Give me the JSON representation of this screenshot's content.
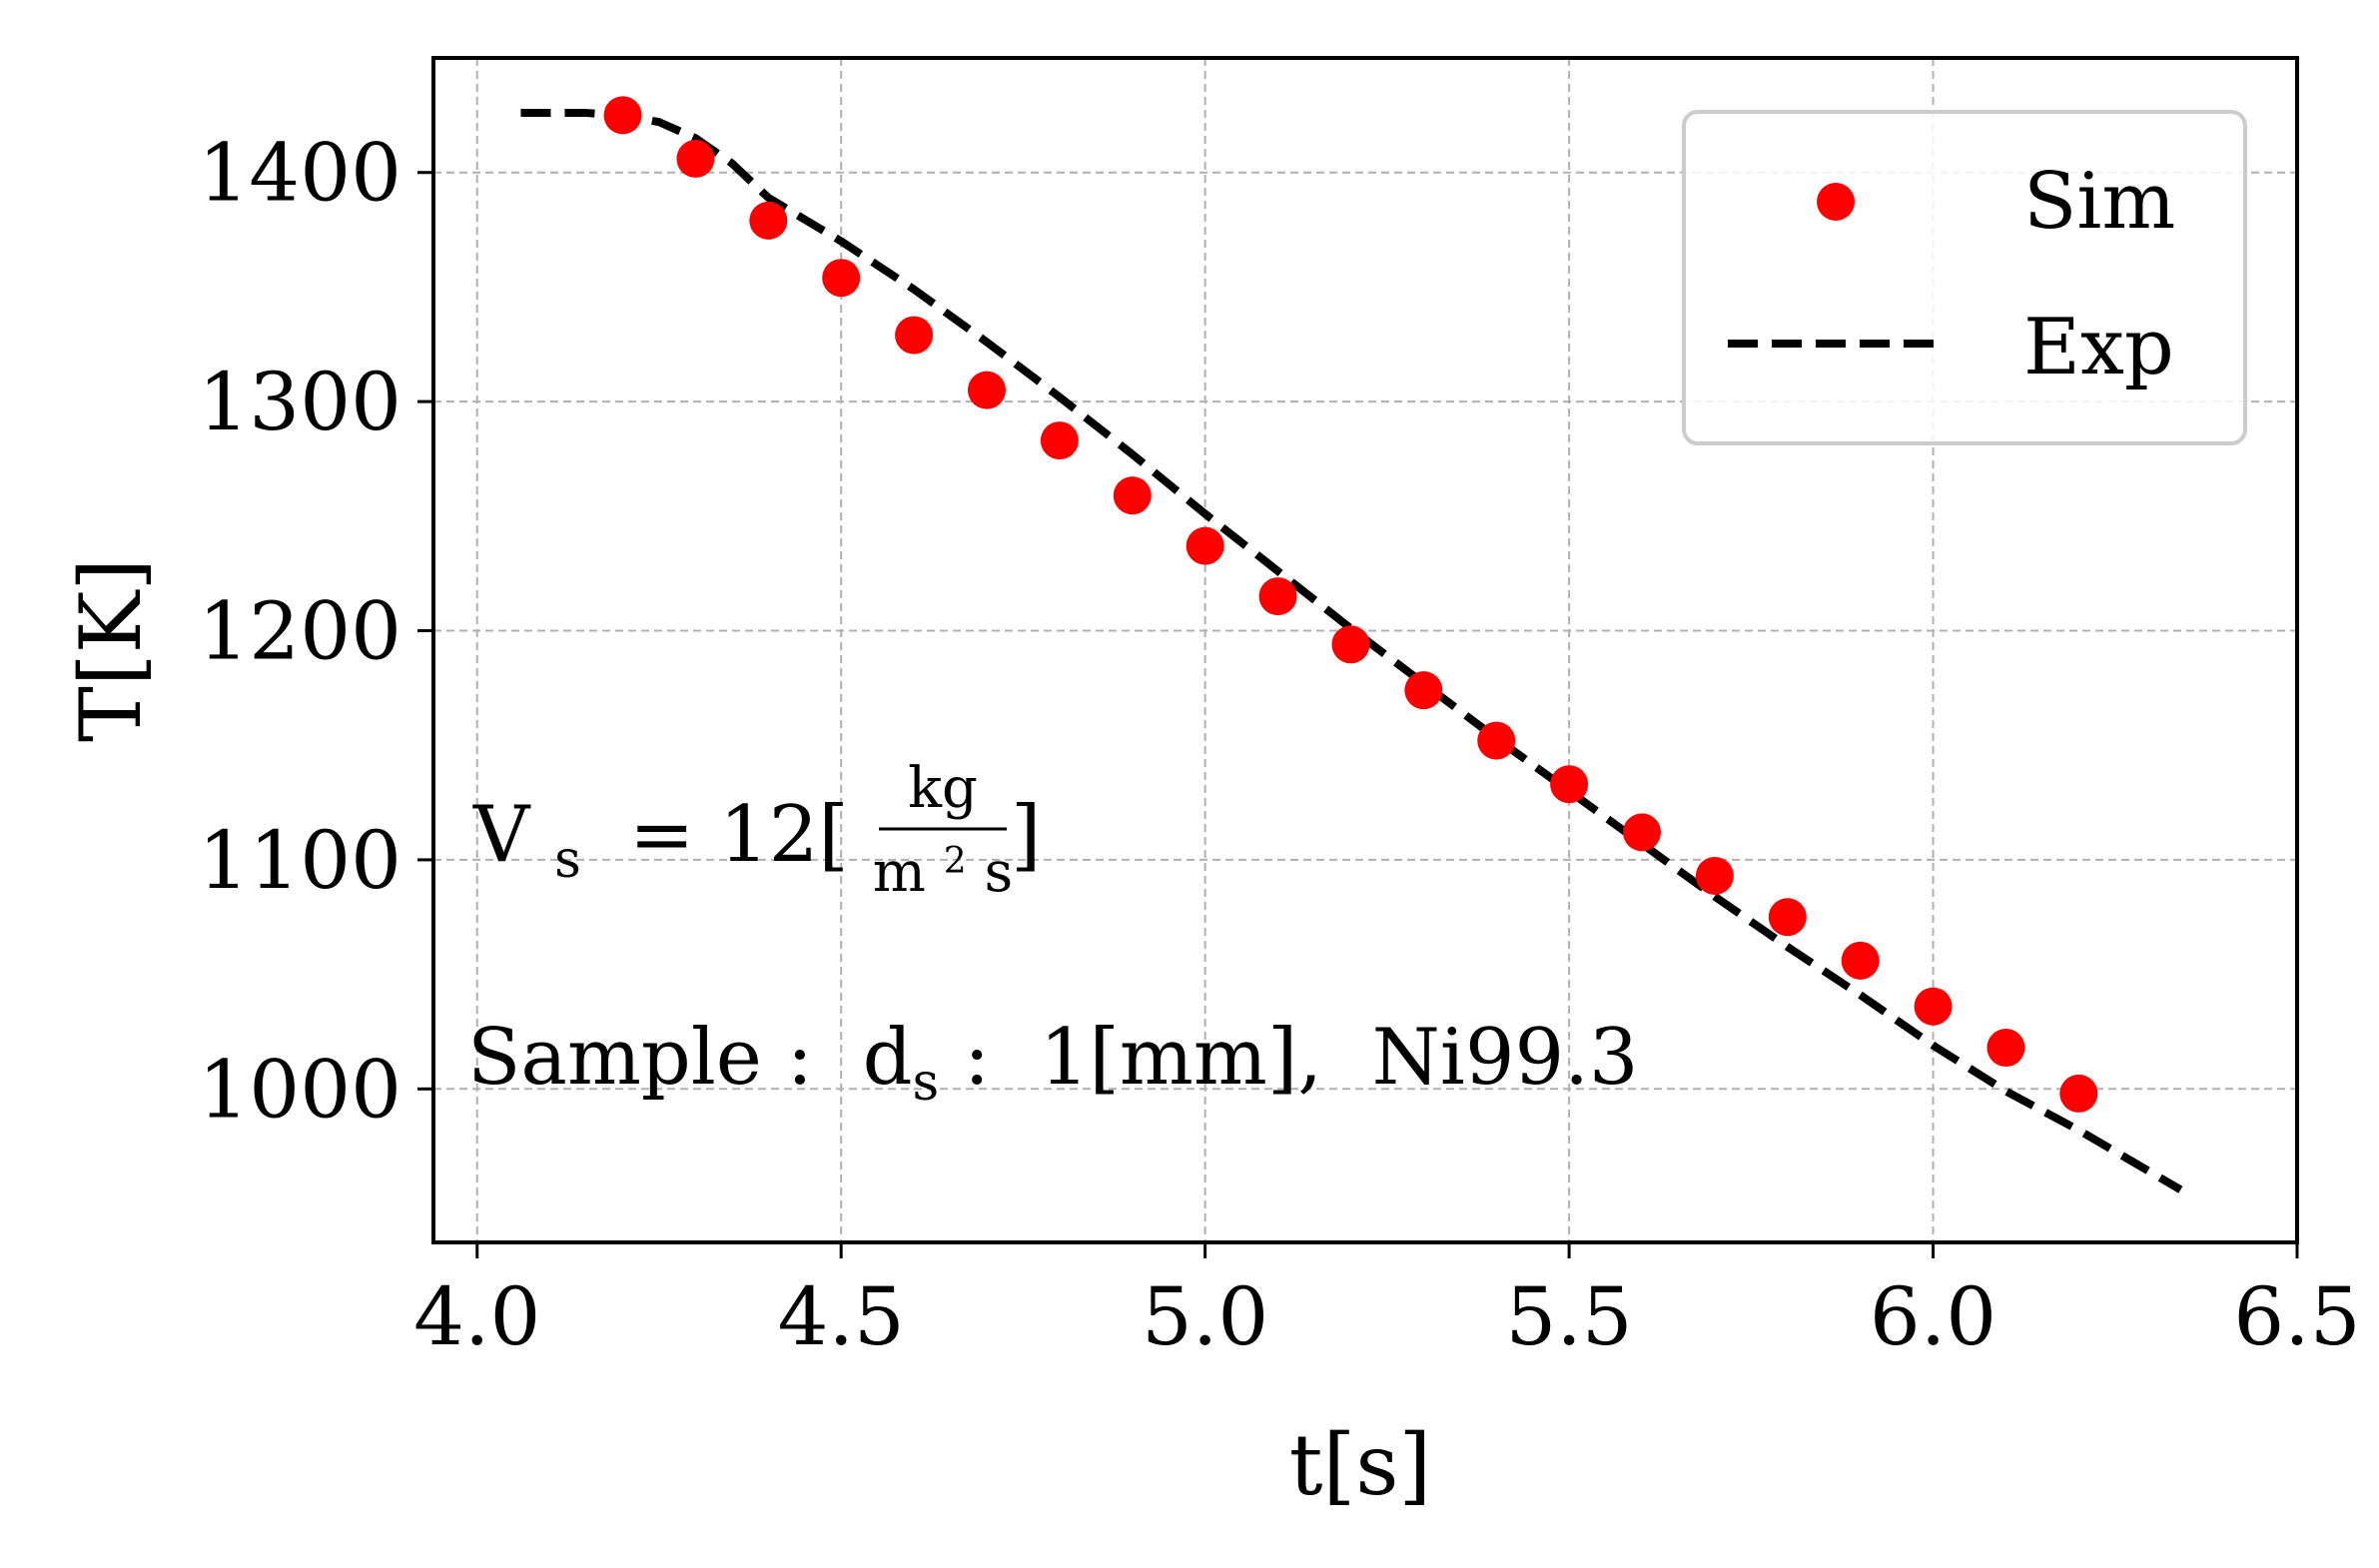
{
  "chart_data": {
    "type": "line",
    "xlabel": "t[s]",
    "ylabel": "T[K]",
    "xlim": [
      3.94,
      6.5
    ],
    "ylim": [
      933,
      1450
    ],
    "xticks": [
      "4.0",
      "4.5",
      "5.0",
      "5.5",
      "6.0",
      "6.5"
    ],
    "xtick_values": [
      4.0,
      4.5,
      5.0,
      5.5,
      6.0,
      6.5
    ],
    "yticks": [
      "1000",
      "1100",
      "1200",
      "1300",
      "1400"
    ],
    "ytick_values": [
      1000,
      1100,
      1200,
      1300,
      1400
    ],
    "grid": true,
    "legend_position": "top-right",
    "series": [
      {
        "name": "Sim",
        "style": "scatter",
        "color": "#ff0000",
        "x": [
          4.2,
          4.3,
          4.4,
          4.5,
          4.6,
          4.7,
          4.8,
          4.9,
          5.0,
          5.1,
          5.2,
          5.3,
          5.4,
          5.5,
          5.6,
          5.7,
          5.8,
          5.9,
          6.0,
          6.1,
          6.2
        ],
        "y": [
          1425,
          1406,
          1379,
          1354,
          1329,
          1305,
          1283,
          1259,
          1237,
          1215,
          1194,
          1174,
          1152,
          1133,
          1112,
          1093,
          1075,
          1056,
          1036,
          1018,
          998
        ]
      },
      {
        "name": "Exp",
        "style": "dashed",
        "color": "#000000",
        "x": [
          4.06,
          4.1,
          4.15,
          4.2,
          4.25,
          4.3,
          4.35,
          4.4,
          4.5,
          4.6,
          4.7,
          4.8,
          4.9,
          5.0,
          5.1,
          5.2,
          5.3,
          5.4,
          5.5,
          5.6,
          5.7,
          5.8,
          5.9,
          6.0,
          6.1,
          6.2,
          6.34
        ],
        "y": [
          1426,
          1426,
          1426,
          1425,
          1422,
          1415,
          1404,
          1389,
          1370,
          1349,
          1326,
          1302,
          1277,
          1251,
          1226,
          1201,
          1177,
          1153,
          1130,
          1107,
          1084,
          1062,
          1041,
          1019,
          999,
          982,
          956
        ]
      }
    ],
    "annotations": {
      "velocity": {
        "lhs": "V",
        "lhs_sub": "s",
        "eq": "= 12[",
        "num": "kg",
        "den_base": "m",
        "den_sup": "2",
        "den_tail": "s",
        "close": "]"
      },
      "sample": {
        "prefix": "Sample :  d",
        "sub": "s",
        "suffix": " :  1[mm],  Ni99.3"
      }
    }
  }
}
